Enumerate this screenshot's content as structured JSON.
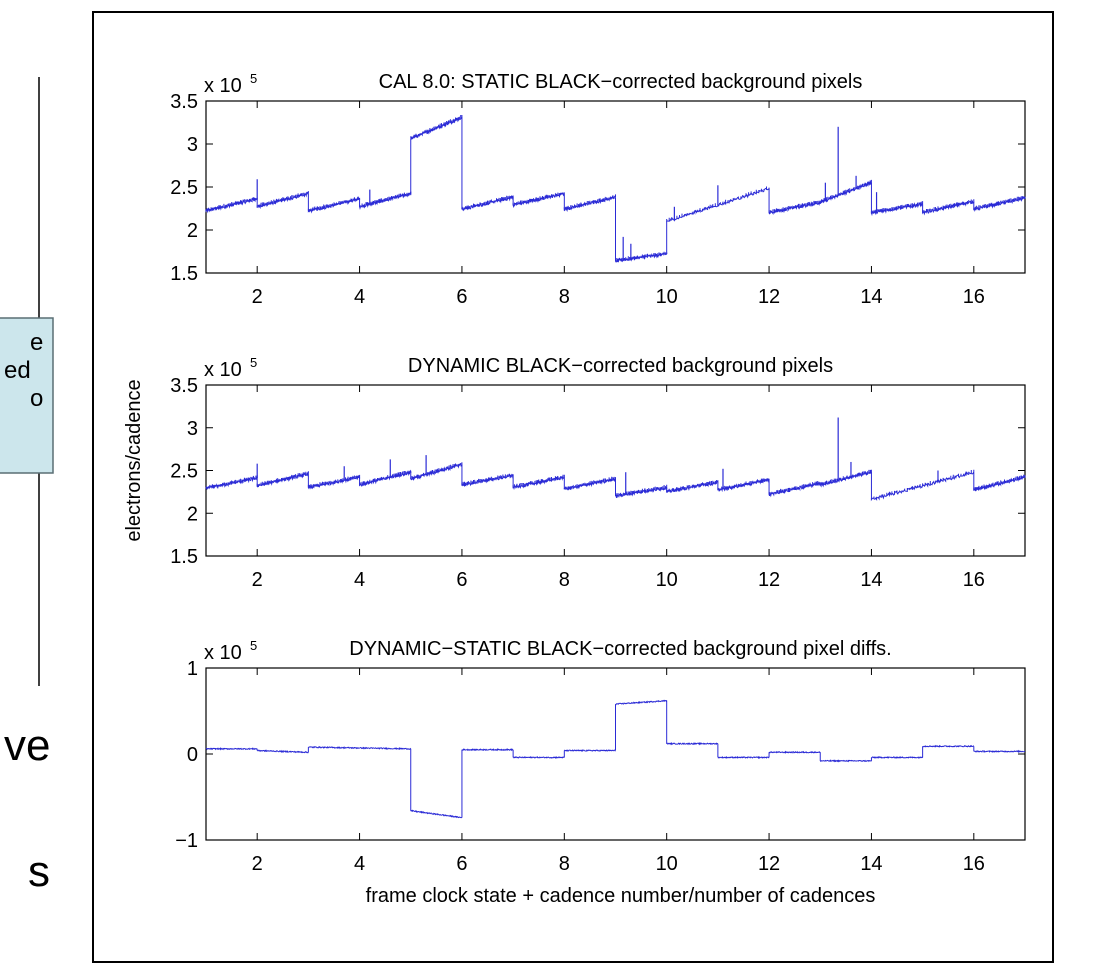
{
  "left_fragments": {
    "callout_lines": [
      "e",
      "ed",
      "o"
    ],
    "text_lines": [
      "ve",
      "s"
    ]
  },
  "colors": {
    "series": "#2b2bd6",
    "axis": "#000000",
    "frame": "#000000",
    "callout_fill": "#cce6ec",
    "callout_border": "#5a6e74"
  },
  "chart_data": [
    {
      "type": "line",
      "title": "CAL 8.0: STATIC BLACK−corrected background pixels",
      "exponent_label": "x 10",
      "exponent_power": "5",
      "ylabel": "",
      "xlabel": "",
      "xlim": [
        1,
        17
      ],
      "ylim": [
        1.5,
        3.5
      ],
      "xticks": [
        "2",
        "4",
        "6",
        "8",
        "10",
        "12",
        "14",
        "16"
      ],
      "yticks": [
        "1.5",
        "2",
        "2.5",
        "3",
        "3.5"
      ],
      "segments": [
        {
          "x": [
            1,
            2
          ],
          "y": [
            2.22,
            2.36
          ]
        },
        {
          "x": [
            2,
            3
          ],
          "y": [
            2.27,
            2.42
          ]
        },
        {
          "x": [
            3,
            4
          ],
          "y": [
            2.22,
            2.36
          ]
        },
        {
          "x": [
            4,
            5
          ],
          "y": [
            2.27,
            2.42
          ]
        },
        {
          "x": [
            5,
            6
          ],
          "y": [
            3.06,
            3.31
          ]
        },
        {
          "x": [
            6,
            7
          ],
          "y": [
            2.24,
            2.38
          ]
        },
        {
          "x": [
            7,
            8
          ],
          "y": [
            2.29,
            2.42
          ]
        },
        {
          "x": [
            8,
            9
          ],
          "y": [
            2.24,
            2.38
          ]
        },
        {
          "x": [
            9,
            10
          ],
          "y": [
            1.64,
            1.72
          ]
        },
        {
          "x": [
            10,
            12
          ],
          "y": [
            2.1,
            2.48
          ]
        },
        {
          "x": [
            12,
            13
          ],
          "y": [
            2.2,
            2.32
          ]
        },
        {
          "x": [
            13,
            14
          ],
          "y": [
            2.32,
            2.55
          ]
        },
        {
          "x": [
            14,
            15
          ],
          "y": [
            2.2,
            2.3
          ]
        },
        {
          "x": [
            15,
            16
          ],
          "y": [
            2.2,
            2.33
          ]
        },
        {
          "x": [
            16,
            17
          ],
          "y": [
            2.24,
            2.37
          ]
        }
      ],
      "spikes": [
        {
          "x": 2.0,
          "y": 2.59
        },
        {
          "x": 4.2,
          "y": 2.47
        },
        {
          "x": 9.15,
          "y": 1.92
        },
        {
          "x": 9.3,
          "y": 1.84
        },
        {
          "x": 10.15,
          "y": 2.27
        },
        {
          "x": 11.0,
          "y": 2.52
        },
        {
          "x": 13.1,
          "y": 2.55
        },
        {
          "x": 13.35,
          "y": 3.2
        },
        {
          "x": 13.7,
          "y": 2.63
        },
        {
          "x": 14.1,
          "y": 2.44
        }
      ]
    },
    {
      "type": "line",
      "title": "DYNAMIC BLACK−corrected background pixels",
      "exponent_label": "x 10",
      "exponent_power": "5",
      "ylabel": "electrons/cadence",
      "xlabel": "",
      "xlim": [
        1,
        17
      ],
      "ylim": [
        1.5,
        3.5
      ],
      "xticks": [
        "2",
        "4",
        "6",
        "8",
        "10",
        "12",
        "14",
        "16"
      ],
      "yticks": [
        "1.5",
        "2",
        "2.5",
        "3",
        "3.5"
      ],
      "segments": [
        {
          "x": [
            1,
            2
          ],
          "y": [
            2.29,
            2.41
          ]
        },
        {
          "x": [
            2,
            3
          ],
          "y": [
            2.32,
            2.46
          ]
        },
        {
          "x": [
            3,
            4
          ],
          "y": [
            2.3,
            2.42
          ]
        },
        {
          "x": [
            4,
            5
          ],
          "y": [
            2.33,
            2.48
          ]
        },
        {
          "x": [
            5,
            6
          ],
          "y": [
            2.4,
            2.57
          ]
        },
        {
          "x": [
            6,
            7
          ],
          "y": [
            2.33,
            2.44
          ]
        },
        {
          "x": [
            7,
            8
          ],
          "y": [
            2.3,
            2.42
          ]
        },
        {
          "x": [
            8,
            9
          ],
          "y": [
            2.28,
            2.4
          ]
        },
        {
          "x": [
            9,
            10
          ],
          "y": [
            2.2,
            2.3
          ]
        },
        {
          "x": [
            10,
            11
          ],
          "y": [
            2.25,
            2.36
          ]
        },
        {
          "x": [
            11,
            12
          ],
          "y": [
            2.27,
            2.39
          ]
        },
        {
          "x": [
            12,
            13
          ],
          "y": [
            2.22,
            2.35
          ]
        },
        {
          "x": [
            13,
            14
          ],
          "y": [
            2.33,
            2.48
          ]
        },
        {
          "x": [
            14,
            16
          ],
          "y": [
            2.16,
            2.48
          ]
        },
        {
          "x": [
            16,
            17
          ],
          "y": [
            2.27,
            2.42
          ]
        }
      ],
      "spikes": [
        {
          "x": 2.0,
          "y": 2.58
        },
        {
          "x": 3.7,
          "y": 2.55
        },
        {
          "x": 4.6,
          "y": 2.63
        },
        {
          "x": 5.3,
          "y": 2.68
        },
        {
          "x": 9.2,
          "y": 2.48
        },
        {
          "x": 11.1,
          "y": 2.52
        },
        {
          "x": 13.35,
          "y": 3.12
        },
        {
          "x": 13.6,
          "y": 2.6
        },
        {
          "x": 15.3,
          "y": 2.5
        }
      ]
    },
    {
      "type": "line",
      "title": "DYNAMIC−STATIC BLACK−corrected background pixel diffs.",
      "exponent_label": "x 10",
      "exponent_power": "5",
      "ylabel": "",
      "xlabel": "frame clock state + cadence number/number of cadences",
      "xlim": [
        1,
        17
      ],
      "ylim": [
        -1,
        1
      ],
      "xticks": [
        "2",
        "4",
        "6",
        "8",
        "10",
        "12",
        "14",
        "16"
      ],
      "yticks": [
        "−1",
        "0",
        "1"
      ],
      "segments": [
        {
          "x": [
            1,
            2
          ],
          "y": [
            0.06,
            0.06
          ]
        },
        {
          "x": [
            2,
            3
          ],
          "y": [
            0.04,
            0.02
          ]
        },
        {
          "x": [
            3,
            4
          ],
          "y": [
            0.08,
            0.07
          ]
        },
        {
          "x": [
            4,
            5
          ],
          "y": [
            0.07,
            0.06
          ]
        },
        {
          "x": [
            5,
            6
          ],
          "y": [
            -0.66,
            -0.74
          ]
        },
        {
          "x": [
            6,
            7
          ],
          "y": [
            0.05,
            0.05
          ]
        },
        {
          "x": [
            7,
            8
          ],
          "y": [
            -0.04,
            -0.04
          ]
        },
        {
          "x": [
            8,
            9
          ],
          "y": [
            0.04,
            0.04
          ]
        },
        {
          "x": [
            9,
            10
          ],
          "y": [
            0.58,
            0.62
          ]
        },
        {
          "x": [
            10,
            11
          ],
          "y": [
            0.12,
            0.12
          ]
        },
        {
          "x": [
            11,
            12
          ],
          "y": [
            -0.04,
            -0.04
          ]
        },
        {
          "x": [
            12,
            13
          ],
          "y": [
            0.02,
            0.02
          ]
        },
        {
          "x": [
            13,
            14
          ],
          "y": [
            -0.08,
            -0.08
          ]
        },
        {
          "x": [
            14,
            15
          ],
          "y": [
            -0.04,
            -0.04
          ]
        },
        {
          "x": [
            15,
            16
          ],
          "y": [
            0.09,
            0.09
          ]
        },
        {
          "x": [
            16,
            17
          ],
          "y": [
            0.03,
            0.03
          ]
        }
      ],
      "spikes": []
    }
  ]
}
